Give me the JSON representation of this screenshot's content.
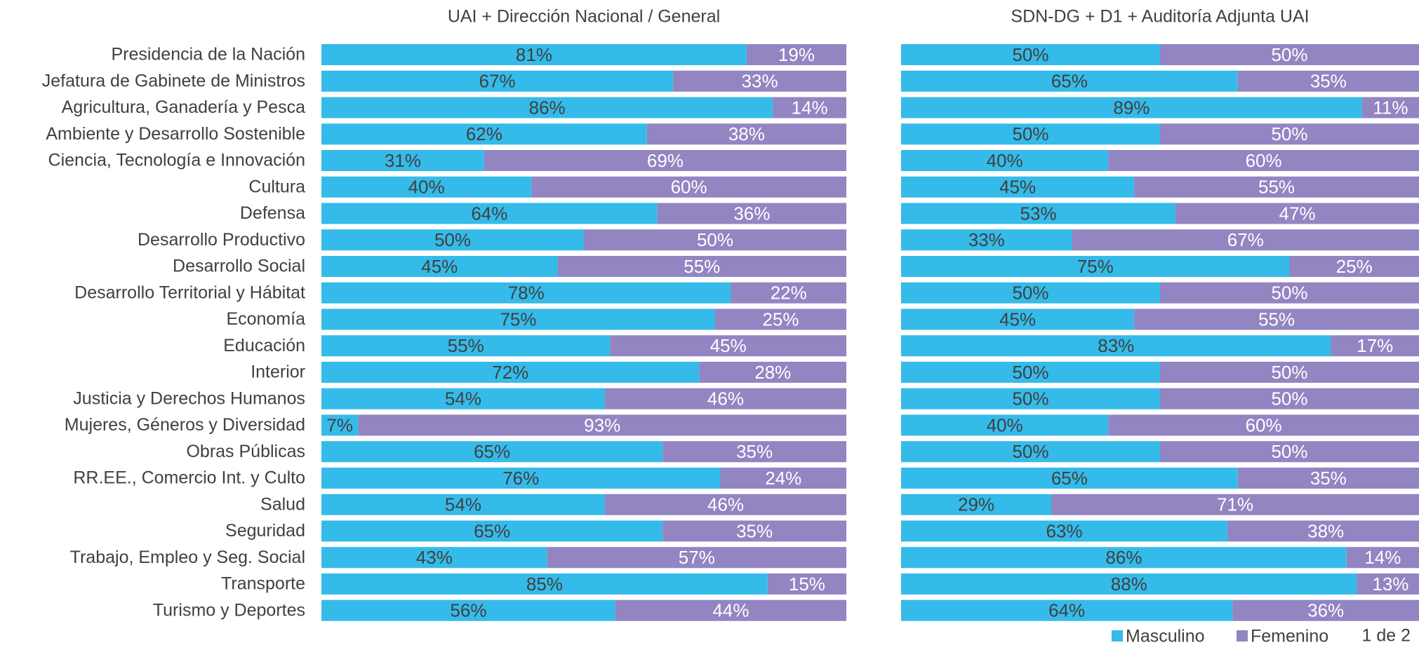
{
  "chart_data": [
    {
      "type": "bar",
      "orientation": "horizontal",
      "stacked": true,
      "title": "UAI + Dirección Nacional / General",
      "categories": [
        "Presidencia de la Nación",
        "Jefatura de Gabinete de Ministros",
        "Agricultura, Ganadería y Pesca",
        "Ambiente y Desarrollo Sostenible",
        "Ciencia, Tecnología e Innovación",
        "Cultura",
        "Defensa",
        "Desarrollo Productivo",
        "Desarrollo Social",
        "Desarrollo Territorial y Hábitat",
        "Economía",
        "Educación",
        "Interior",
        "Justicia y Derechos Humanos",
        "Mujeres, Géneros y Diversidad",
        "Obras Públicas",
        "RR.EE., Comercio Int. y Culto",
        "Salud",
        "Seguridad",
        "Trabajo, Empleo y Seg. Social",
        "Transporte",
        "Turismo y Deportes"
      ],
      "xlim": [
        0,
        100
      ],
      "series": [
        {
          "name": "Masculino",
          "color": "#35bbe9",
          "values": [
            81,
            67,
            86,
            62,
            31,
            40,
            64,
            50,
            45,
            78,
            75,
            55,
            72,
            54,
            7,
            65,
            76,
            54,
            65,
            43,
            85,
            56
          ],
          "value_labels": [
            "81%",
            "67%",
            "86%",
            "62%",
            "31%",
            "40%",
            "64%",
            "50%",
            "45%",
            "78%",
            "75%",
            "55%",
            "72%",
            "54%",
            "7%",
            "65%",
            "76%",
            "54%",
            "65%",
            "43%",
            "85%",
            "56%"
          ]
        },
        {
          "name": "Femenino",
          "color": "#9384c2",
          "values": [
            19,
            33,
            14,
            38,
            69,
            60,
            36,
            50,
            55,
            22,
            25,
            45,
            28,
            46,
            93,
            35,
            24,
            46,
            35,
            57,
            15,
            44
          ],
          "value_labels": [
            "19%",
            "33%",
            "14%",
            "38%",
            "69%",
            "60%",
            "36%",
            "50%",
            "55%",
            "22%",
            "25%",
            "45%",
            "28%",
            "46%",
            "93%",
            "35%",
            "24%",
            "46%",
            "35%",
            "57%",
            "15%",
            "44%"
          ]
        }
      ]
    },
    {
      "type": "bar",
      "orientation": "horizontal",
      "stacked": true,
      "title": "SDN-DG + D1 + Auditoría Adjunta UAI",
      "xlim": [
        0,
        100
      ],
      "series": [
        {
          "color": "#35bbe9",
          "values": [
            50,
            65,
            89,
            50,
            40,
            45,
            53,
            33,
            75,
            50,
            45,
            83,
            50,
            50,
            40,
            50,
            65,
            29,
            63,
            86,
            88,
            64
          ],
          "value_labels": [
            "50%",
            "65%",
            "89%",
            "50%",
            "40%",
            "45%",
            "53%",
            "33%",
            "75%",
            "50%",
            "45%",
            "83%",
            "50%",
            "50%",
            "40%",
            "50%",
            "65%",
            "29%",
            "63%",
            "86%",
            "88%",
            "64%"
          ]
        },
        {
          "color": "#9384c2",
          "values": [
            50,
            35,
            11,
            50,
            60,
            55,
            47,
            67,
            25,
            50,
            55,
            17,
            50,
            50,
            60,
            50,
            35,
            71,
            38,
            14,
            13,
            36
          ],
          "value_labels": [
            "50%",
            "35%",
            "11%",
            "50%",
            "60%",
            "55%",
            "47%",
            "67%",
            "25%",
            "50%",
            "55%",
            "17%",
            "50%",
            "50%",
            "60%",
            "50%",
            "35%",
            "71%",
            "38%",
            "14%",
            "13%",
            "36%"
          ]
        }
      ]
    }
  ],
  "page_label": "1 de 2"
}
